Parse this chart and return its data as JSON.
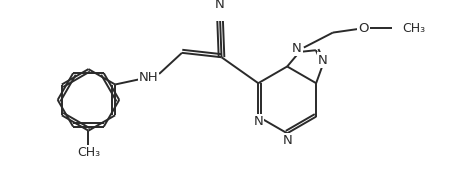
{
  "background": "#ffffff",
  "line_color": "#2a2a2a",
  "line_width": 1.4,
  "font_size": 9.5,
  "figsize": [
    4.52,
    1.72
  ],
  "dpi": 100,
  "xlim": [
    0,
    452
  ],
  "ylim": [
    0,
    172
  ]
}
